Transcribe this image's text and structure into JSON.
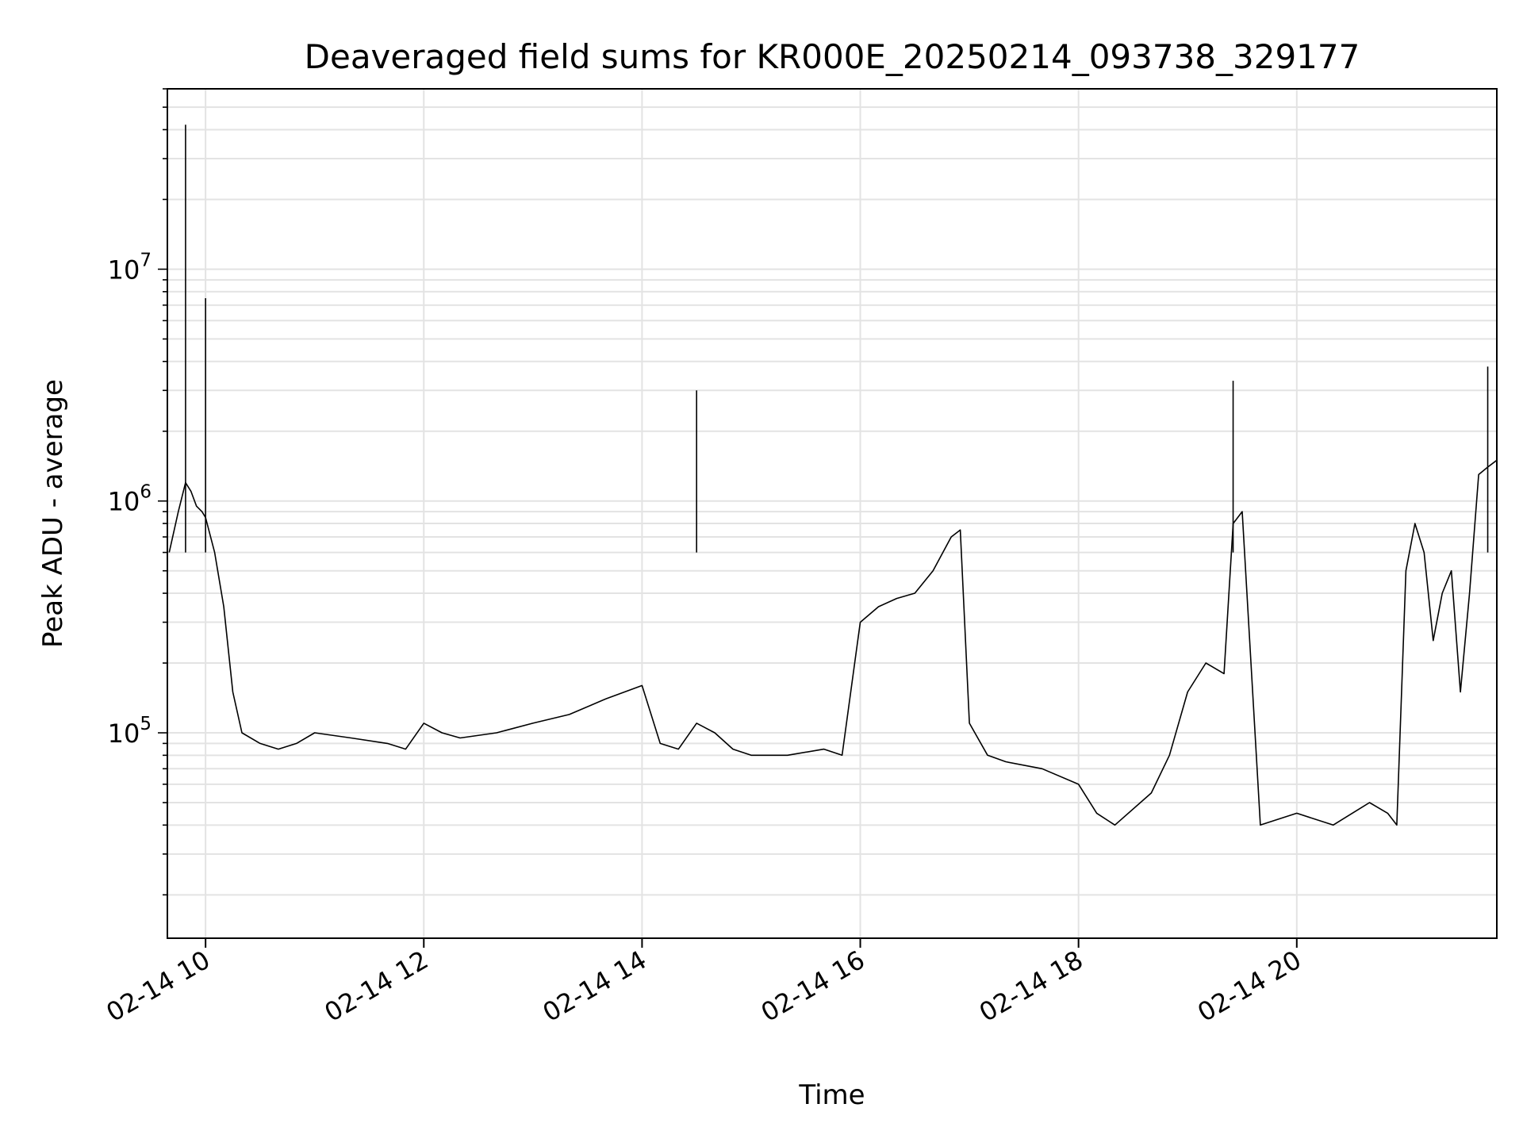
{
  "chart_data": {
    "type": "line",
    "title": "Deaveraged field sums for KR000E_20250214_093738_329177",
    "xlabel": "Time",
    "ylabel": "Peak ADU - average",
    "yscale": "log",
    "grid": true,
    "xlim": [
      "2025-02-14 09:39",
      "2025-02-14 21:50"
    ],
    "ylim": [
      13000,
      60000000
    ],
    "x_ticks": [
      "2025-02-14 10:00",
      "2025-02-14 12:00",
      "2025-02-14 14:00",
      "2025-02-14 16:00",
      "2025-02-14 18:00",
      "2025-02-14 20:00"
    ],
    "x_tick_labels": [
      "02-14 10",
      "02-14 12",
      "02-14 14",
      "02-14 16",
      "02-14 18",
      "02-14 20"
    ],
    "y_tick_labels": [
      {
        "base": "10",
        "exp": "5",
        "value": 100000
      },
      {
        "base": "10",
        "exp": "6",
        "value": 1000000
      },
      {
        "base": "10",
        "exp": "7",
        "value": 10000000
      }
    ],
    "line_color": "#000000",
    "series": [
      {
        "x": [
          "2025-02-14 09:40",
          "2025-02-14 09:45",
          "2025-02-14 09:49",
          "2025-02-14 09:52",
          "2025-02-14 09:55",
          "2025-02-14 09:58",
          "2025-02-14 10:00",
          "2025-02-14 10:05",
          "2025-02-14 10:10",
          "2025-02-14 10:15",
          "2025-02-14 10:20",
          "2025-02-14 10:30",
          "2025-02-14 10:40",
          "2025-02-14 10:50",
          "2025-02-14 11:00",
          "2025-02-14 11:20",
          "2025-02-14 11:40",
          "2025-02-14 11:50",
          "2025-02-14 12:00",
          "2025-02-14 12:10",
          "2025-02-14 12:20",
          "2025-02-14 12:40",
          "2025-02-14 13:00",
          "2025-02-14 13:20",
          "2025-02-14 13:40",
          "2025-02-14 14:00",
          "2025-02-14 14:10",
          "2025-02-14 14:20",
          "2025-02-14 14:30",
          "2025-02-14 14:40",
          "2025-02-14 14:50",
          "2025-02-14 15:00",
          "2025-02-14 15:20",
          "2025-02-14 15:40",
          "2025-02-14 15:50",
          "2025-02-14 16:00",
          "2025-02-14 16:10",
          "2025-02-14 16:20",
          "2025-02-14 16:30",
          "2025-02-14 16:40",
          "2025-02-14 16:50",
          "2025-02-14 16:55",
          "2025-02-14 17:00",
          "2025-02-14 17:10",
          "2025-02-14 17:20",
          "2025-02-14 17:40",
          "2025-02-14 18:00",
          "2025-02-14 18:10",
          "2025-02-14 18:20",
          "2025-02-14 18:40",
          "2025-02-14 18:50",
          "2025-02-14 19:00",
          "2025-02-14 19:10",
          "2025-02-14 19:20",
          "2025-02-14 19:25",
          "2025-02-14 19:30",
          "2025-02-14 19:40",
          "2025-02-14 20:00",
          "2025-02-14 20:20",
          "2025-02-14 20:40",
          "2025-02-14 20:50",
          "2025-02-14 20:55",
          "2025-02-14 21:00",
          "2025-02-14 21:05",
          "2025-02-14 21:10",
          "2025-02-14 21:15",
          "2025-02-14 21:20",
          "2025-02-14 21:25",
          "2025-02-14 21:30",
          "2025-02-14 21:35",
          "2025-02-14 21:40",
          "2025-02-14 21:45",
          "2025-02-14 21:50"
        ],
        "y": [
          600000,
          900000,
          1200000,
          1100000,
          950000,
          900000,
          850000,
          600000,
          350000,
          150000,
          100000,
          90000,
          85000,
          90000,
          100000,
          95000,
          90000,
          85000,
          110000,
          100000,
          95000,
          100000,
          110000,
          120000,
          140000,
          160000,
          90000,
          85000,
          110000,
          100000,
          85000,
          80000,
          80000,
          85000,
          80000,
          300000,
          350000,
          380000,
          400000,
          500000,
          700000,
          750000,
          110000,
          80000,
          75000,
          70000,
          60000,
          45000,
          40000,
          55000,
          80000,
          150000,
          200000,
          180000,
          800000,
          900000,
          40000,
          45000,
          40000,
          50000,
          45000,
          40000,
          500000,
          800000,
          600000,
          250000,
          400000,
          500000,
          150000,
          400000,
          1300000,
          1400000,
          1500000
        ]
      }
    ],
    "annotated_peaks": [
      {
        "x": "2025-02-14 09:49",
        "y": 42000000
      },
      {
        "x": "2025-02-14 10:00",
        "y": 7500000
      },
      {
        "x": "2025-02-14 14:30",
        "y": 3000000
      },
      {
        "x": "2025-02-14 19:25",
        "y": 3300000
      },
      {
        "x": "2025-02-14 21:45",
        "y": 3800000
      }
    ]
  }
}
